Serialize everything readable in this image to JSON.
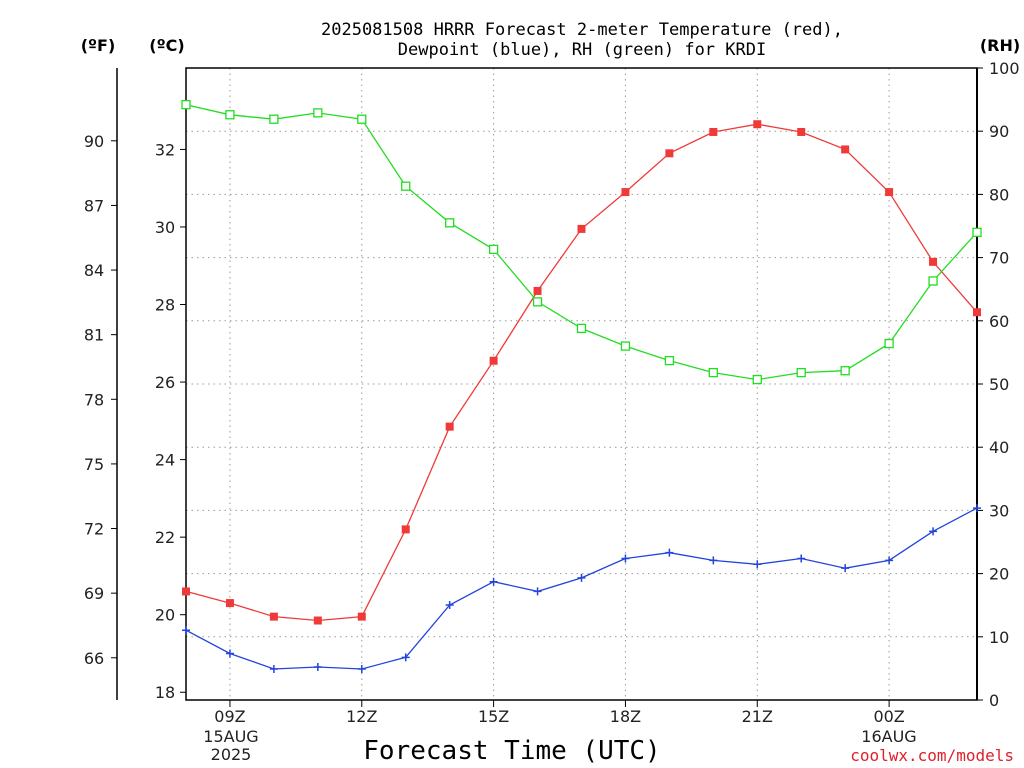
{
  "title_line1": "2025081508 HRRR Forecast 2-meter Temperature (red),",
  "title_line2": "Dewpoint (blue), RH (green) for KRDI",
  "units": {
    "f": "(ºF)",
    "c": "(ºC)",
    "rh": "(RH)"
  },
  "xlabel": "Forecast Time (UTC)",
  "credit": "coolwx.com/models",
  "x_date_labels": [
    "15AUG",
    "2025",
    "16AUG"
  ],
  "colors": {
    "temperature": "#f03a3a",
    "dewpoint": "#2244dd",
    "rh": "#22dd22",
    "grid": "#9a9a9a"
  },
  "chart_data": {
    "type": "line",
    "x": [
      "08Z",
      "09Z",
      "10Z",
      "11Z",
      "12Z",
      "13Z",
      "14Z",
      "15Z",
      "16Z",
      "17Z",
      "18Z",
      "19Z",
      "20Z",
      "21Z",
      "22Z",
      "23Z",
      "00Z",
      "01Z",
      "02Z"
    ],
    "x_tick_labels": [
      "09Z",
      "12Z",
      "15Z",
      "18Z",
      "21Z",
      "00Z"
    ],
    "ylim_c": [
      17.8,
      34.1
    ],
    "y_ticks_c": [
      18,
      20,
      22,
      24,
      26,
      28,
      30,
      32
    ],
    "y_ticks_f": [
      66,
      69,
      72,
      75,
      78,
      81,
      84,
      87,
      90
    ],
    "ylim_rh": [
      0,
      100
    ],
    "y_ticks_rh": [
      0,
      10,
      20,
      30,
      40,
      50,
      60,
      70,
      80,
      90,
      100
    ],
    "grid": true,
    "series": [
      {
        "name": "Temperature",
        "axis": "c",
        "values": [
          20.6,
          20.3,
          19.95,
          19.85,
          19.95,
          22.2,
          24.85,
          26.55,
          28.35,
          29.95,
          30.9,
          31.9,
          32.45,
          32.65,
          32.45,
          32.0,
          30.9,
          29.1,
          27.8
        ]
      },
      {
        "name": "Dewpoint",
        "axis": "c",
        "values": [
          19.6,
          19.0,
          18.6,
          18.65,
          18.6,
          18.9,
          20.25,
          20.85,
          20.6,
          20.95,
          21.45,
          21.6,
          21.4,
          21.3,
          21.45,
          21.2,
          21.4,
          22.15,
          22.75
        ]
      },
      {
        "name": "RH",
        "axis": "rh",
        "values": [
          94.2,
          92.6,
          91.9,
          92.9,
          91.9,
          81.3,
          75.5,
          71.3,
          63.0,
          58.8,
          56.0,
          53.7,
          51.8,
          50.7,
          51.8,
          52.1,
          56.4,
          66.3,
          74.0
        ]
      }
    ]
  }
}
